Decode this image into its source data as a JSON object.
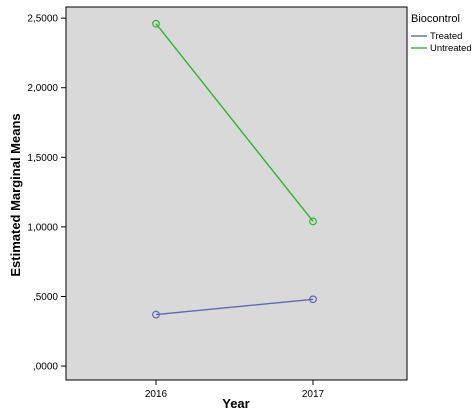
{
  "chart_data": {
    "type": "line",
    "xlabel": "Year",
    "ylabel": "Estimated Marginal Means",
    "categories": [
      "2016",
      "2017"
    ],
    "ylim": [
      -0.1,
      2.58
    ],
    "y_ticks": [
      0.0,
      0.5,
      1.0,
      1.5,
      2.0,
      2.5
    ],
    "y_tick_labels": [
      ",0000",
      ",5000",
      "1,0000",
      "1,5000",
      "2,0000",
      "2,5000"
    ],
    "legend": {
      "title": "Biocontrol",
      "placement": "right-outside"
    },
    "series": [
      {
        "name": "Treated",
        "values": [
          0.37,
          0.48
        ],
        "color": "#5b6ab5"
      },
      {
        "name": "Untreated",
        "values": [
          2.46,
          1.04
        ],
        "color": "#2db52d"
      }
    ],
    "plot_background": "#d9d9d9",
    "grid": false,
    "markers": "hollow-circle"
  }
}
